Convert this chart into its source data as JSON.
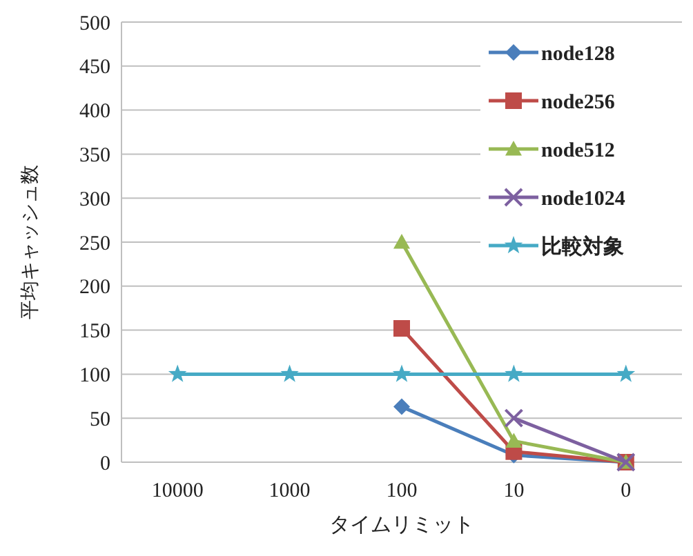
{
  "chart_data": {
    "type": "line",
    "xlabel": "タイムリミット",
    "ylabel": "平均キャッシュ数",
    "categories": [
      "10000",
      "1000",
      "100",
      "10",
      "0"
    ],
    "series": [
      {
        "name": "node128",
        "color": "#4a7ebb",
        "marker": "diamond",
        "values": [
          null,
          null,
          63,
          8,
          0
        ]
      },
      {
        "name": "node256",
        "color": "#be4b48",
        "marker": "square",
        "values": [
          null,
          null,
          152,
          12,
          0
        ]
      },
      {
        "name": "node512",
        "color": "#98b954",
        "marker": "triangle",
        "values": [
          null,
          null,
          250,
          24,
          0
        ]
      },
      {
        "name": "node1024",
        "color": "#7d60a0",
        "marker": "cross",
        "values": [
          null,
          null,
          null,
          50,
          0
        ]
      },
      {
        "name": "比較対象",
        "color": "#46aac5",
        "marker": "star",
        "values": [
          100,
          100,
          100,
          100,
          100
        ]
      }
    ],
    "ylim": [
      0,
      500
    ],
    "yticks": [
      0,
      50,
      100,
      150,
      200,
      250,
      300,
      350,
      400,
      450,
      500
    ],
    "grid": "y",
    "legend": "top right"
  }
}
